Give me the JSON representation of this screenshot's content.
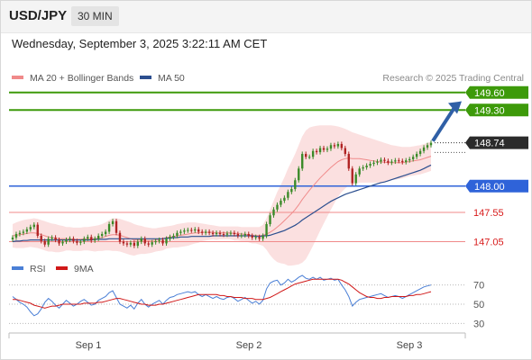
{
  "header": {
    "symbol": "USD/JPY",
    "timeframe": "30 MIN",
    "datetime": "Wednesday, September 3, 2025 3:22:11 AM CET"
  },
  "legend": {
    "items": [
      {
        "label": "MA 20 + Bollinger Bands",
        "color": "#f08a8a"
      },
      {
        "label": "MA 50",
        "color": "#2c4f8f"
      }
    ],
    "credit": "Research © 2025 Trading Central"
  },
  "colors": {
    "resistance": "#3d9a0a",
    "support": "#2f63d9",
    "pivot_line": "#f08a8a",
    "pivot_text": "#d81b1b",
    "last_price_bg": "#2b2b2b",
    "candle_up": "#3a8a28",
    "candle_down": "#b02424",
    "bollinger_fill": "#fbe0e0",
    "rsi": "#4a7fd6",
    "rsi_ma": "#d01818",
    "arrow": "#2f5fa6"
  },
  "chart_data": [
    {
      "type": "candlestick",
      "ylim": [
        146.95,
        149.72
      ],
      "x_labels": [
        "Sep 1",
        "Sep 2",
        "Sep 3"
      ],
      "levels": [
        {
          "value": 149.6,
          "label": "149.60",
          "kind": "resistance"
        },
        {
          "value": 149.3,
          "label": "149.30",
          "kind": "resistance"
        },
        {
          "value": 148.0,
          "label": "148.00",
          "kind": "support"
        },
        {
          "value": 147.55,
          "label": "147.55",
          "kind": "pivot"
        },
        {
          "value": 147.05,
          "label": "147.05",
          "kind": "pivot"
        }
      ],
      "last_price": {
        "value": 148.74,
        "label": "148.74"
      },
      "forecast_arrow": {
        "from": 148.74,
        "to": 149.45
      },
      "closes": [
        147.12,
        147.18,
        147.2,
        147.22,
        147.26,
        147.3,
        147.34,
        147.15,
        147.06,
        147.0,
        147.1,
        147.12,
        147.08,
        147.02,
        147.05,
        147.08,
        147.1,
        147.06,
        147.03,
        147.05,
        147.1,
        147.13,
        147.07,
        147.1,
        147.15,
        147.18,
        147.22,
        147.35,
        147.4,
        147.2,
        147.05,
        147.02,
        147.0,
        147.03,
        146.98,
        147.05,
        147.1,
        147.02,
        147.0,
        147.04,
        147.06,
        147.08,
        147.02,
        147.1,
        147.13,
        147.15,
        147.2,
        147.22,
        147.24,
        147.25,
        147.24,
        147.26,
        147.22,
        147.2,
        147.22,
        147.2,
        147.18,
        147.2,
        147.18,
        147.17,
        147.19,
        147.2,
        147.18,
        147.15,
        147.16,
        147.18,
        147.15,
        147.12,
        147.13,
        147.1,
        147.15,
        147.35,
        147.5,
        147.6,
        147.68,
        147.75,
        147.8,
        147.9,
        147.95,
        148.1,
        148.3,
        148.55,
        148.5,
        148.5,
        148.6,
        148.58,
        148.65,
        148.62,
        148.64,
        148.7,
        148.68,
        148.72,
        148.65,
        148.55,
        148.3,
        148.05,
        148.2,
        148.3,
        148.32,
        148.35,
        148.38,
        148.4,
        148.42,
        148.45,
        148.43,
        148.4,
        148.42,
        148.44,
        148.43,
        148.41,
        148.44,
        148.46,
        148.5,
        148.55,
        148.6,
        148.66,
        148.7,
        148.74
      ],
      "ma20": [
        147.15,
        147.16,
        147.17,
        147.18,
        147.19,
        147.2,
        147.2,
        147.19,
        147.17,
        147.15,
        147.13,
        147.12,
        147.11,
        147.1,
        147.1,
        147.1,
        147.1,
        147.09,
        147.09,
        147.09,
        147.1,
        147.1,
        147.1,
        147.1,
        147.11,
        147.12,
        147.14,
        147.16,
        147.17,
        147.17,
        147.16,
        147.14,
        147.12,
        147.1,
        147.08,
        147.08,
        147.08,
        147.07,
        147.07,
        147.07,
        147.08,
        147.09,
        147.1,
        147.12,
        147.13,
        147.14,
        147.15,
        147.16,
        147.17,
        147.18,
        147.19,
        147.2,
        147.2,
        147.21,
        147.21,
        147.21,
        147.21,
        147.2,
        147.2,
        147.2,
        147.2,
        147.2,
        147.19,
        147.19,
        147.18,
        147.18,
        147.17,
        147.16,
        147.16,
        147.15,
        147.16,
        147.18,
        147.21,
        147.25,
        147.3,
        147.35,
        147.41,
        147.47,
        147.53,
        147.6,
        147.68,
        147.77,
        147.85,
        147.93,
        148.0,
        148.07,
        148.14,
        148.2,
        148.26,
        148.32,
        148.37,
        148.42,
        148.45,
        148.47,
        148.48,
        148.47,
        148.47,
        148.47,
        148.46,
        148.45,
        148.44,
        148.43,
        148.42,
        148.41,
        148.41,
        148.4,
        148.4,
        148.4,
        148.4,
        148.4,
        148.41,
        148.42,
        148.43,
        148.44,
        148.45,
        148.47,
        148.49,
        148.51
      ],
      "bb_upper": [
        147.35,
        147.38,
        147.4,
        147.42,
        147.43,
        147.44,
        147.45,
        147.44,
        147.42,
        147.4,
        147.38,
        147.36,
        147.35,
        147.33,
        147.32,
        147.3,
        147.3,
        147.29,
        147.29,
        147.29,
        147.3,
        147.3,
        147.31,
        147.32,
        147.33,
        147.35,
        147.38,
        147.42,
        147.45,
        147.45,
        147.44,
        147.42,
        147.4,
        147.38,
        147.35,
        147.33,
        147.32,
        147.3,
        147.29,
        147.28,
        147.28,
        147.29,
        147.3,
        147.31,
        147.32,
        147.33,
        147.35,
        147.36,
        147.37,
        147.38,
        147.38,
        147.38,
        147.37,
        147.36,
        147.35,
        147.34,
        147.33,
        147.32,
        147.31,
        147.31,
        147.31,
        147.31,
        147.31,
        147.31,
        147.3,
        147.3,
        147.3,
        147.3,
        147.3,
        147.3,
        147.34,
        147.45,
        147.6,
        147.75,
        147.9,
        148.02,
        148.15,
        148.3,
        148.42,
        148.55,
        148.7,
        148.85,
        148.95,
        149.0,
        149.02,
        149.03,
        149.04,
        149.04,
        149.04,
        149.04,
        149.03,
        149.02,
        149.0,
        148.98,
        148.95,
        148.92,
        148.9,
        148.88,
        148.86,
        148.84,
        148.82,
        148.8,
        148.78,
        148.76,
        148.74,
        148.72,
        148.7,
        148.69,
        148.68,
        148.67,
        148.67,
        148.67,
        148.68,
        148.69,
        148.7,
        148.72,
        148.74,
        148.76
      ],
      "bb_lower": [
        146.95,
        146.94,
        146.94,
        146.94,
        146.95,
        146.96,
        146.95,
        146.94,
        146.92,
        146.9,
        146.88,
        146.88,
        146.87,
        146.87,
        146.88,
        146.9,
        146.9,
        146.89,
        146.89,
        146.89,
        146.9,
        146.9,
        146.89,
        146.88,
        146.89,
        146.89,
        146.9,
        146.9,
        146.89,
        146.89,
        146.88,
        146.86,
        146.84,
        146.82,
        146.81,
        146.83,
        146.84,
        146.84,
        146.85,
        146.86,
        146.88,
        146.89,
        146.9,
        146.93,
        146.94,
        146.95,
        146.95,
        146.96,
        146.97,
        146.98,
        147.0,
        147.02,
        147.03,
        147.06,
        147.07,
        147.08,
        147.09,
        147.08,
        147.09,
        147.09,
        147.09,
        147.09,
        147.07,
        147.07,
        147.06,
        147.06,
        147.04,
        147.02,
        147.02,
        147.0,
        146.98,
        146.91,
        146.82,
        146.75,
        146.7,
        146.68,
        146.67,
        146.64,
        146.64,
        146.65,
        146.66,
        146.69,
        146.75,
        146.86,
        146.98,
        147.11,
        147.24,
        147.36,
        147.48,
        147.6,
        147.71,
        147.82,
        147.9,
        147.96,
        148.01,
        148.02,
        148.04,
        148.06,
        148.06,
        148.06,
        148.06,
        148.06,
        148.06,
        148.06,
        148.08,
        148.08,
        148.1,
        148.11,
        148.12,
        148.13,
        148.15,
        148.17,
        148.18,
        148.19,
        148.2,
        148.22,
        148.24,
        148.26
      ],
      "ma50": [
        147.05,
        147.06,
        147.06,
        147.07,
        147.07,
        147.08,
        147.08,
        147.08,
        147.08,
        147.08,
        147.08,
        147.08,
        147.08,
        147.08,
        147.08,
        147.08,
        147.08,
        147.08,
        147.08,
        147.08,
        147.08,
        147.08,
        147.08,
        147.09,
        147.09,
        147.09,
        147.09,
        147.1,
        147.1,
        147.1,
        147.1,
        147.1,
        147.1,
        147.1,
        147.1,
        147.1,
        147.1,
        147.1,
        147.1,
        147.1,
        147.1,
        147.1,
        147.1,
        147.11,
        147.11,
        147.12,
        147.12,
        147.13,
        147.13,
        147.13,
        147.14,
        147.14,
        147.14,
        147.14,
        147.14,
        147.14,
        147.15,
        147.15,
        147.15,
        147.15,
        147.15,
        147.15,
        147.15,
        147.15,
        147.15,
        147.15,
        147.15,
        147.15,
        147.14,
        147.14,
        147.15,
        147.15,
        147.16,
        147.18,
        147.2,
        147.22,
        147.24,
        147.27,
        147.3,
        147.33,
        147.37,
        147.42,
        147.46,
        147.5,
        147.54,
        147.58,
        147.62,
        147.66,
        147.7,
        147.74,
        147.77,
        147.8,
        147.83,
        147.86,
        147.88,
        147.9,
        147.92,
        147.94,
        147.96,
        147.98,
        148.0,
        148.02,
        148.04,
        148.06,
        148.07,
        148.09,
        148.11,
        148.13,
        148.15,
        148.17,
        148.19,
        148.21,
        148.23,
        148.25,
        148.27,
        148.3,
        148.33,
        148.36
      ]
    },
    {
      "type": "line",
      "legend": [
        "RSI",
        "9MA"
      ],
      "ylim": [
        20,
        80
      ],
      "y_ticks": [
        70,
        50,
        30
      ],
      "rsi": [
        58,
        55,
        52,
        50,
        47,
        42,
        38,
        40,
        45,
        52,
        56,
        53,
        49,
        46,
        50,
        54,
        51,
        48,
        50,
        53,
        55,
        52,
        49,
        50,
        54,
        56,
        58,
        62,
        64,
        57,
        50,
        48,
        46,
        49,
        45,
        51,
        55,
        50,
        47,
        50,
        52,
        54,
        50,
        54,
        57,
        58,
        60,
        61,
        62,
        63,
        62,
        63,
        60,
        58,
        60,
        58,
        56,
        58,
        56,
        55,
        57,
        58,
        56,
        53,
        55,
        57,
        54,
        51,
        53,
        50,
        54,
        66,
        72,
        74,
        75,
        70,
        72,
        76,
        73,
        75,
        78,
        80,
        77,
        76,
        78,
        76,
        78,
        75,
        76,
        77,
        75,
        76,
        70,
        65,
        58,
        48,
        52,
        55,
        56,
        57,
        58,
        59,
        60,
        61,
        59,
        57,
        58,
        59,
        58,
        56,
        58,
        60,
        62,
        64,
        66,
        68,
        69,
        70
      ],
      "ma9": [
        55,
        55,
        54,
        53,
        52,
        51,
        49,
        48,
        47,
        46,
        47,
        48,
        48,
        49,
        50,
        50,
        50,
        50,
        50,
        50,
        51,
        51,
        51,
        51,
        52,
        52,
        53,
        54,
        55,
        56,
        56,
        55,
        54,
        53,
        52,
        51,
        50,
        50,
        49,
        49,
        49,
        50,
        50,
        51,
        52,
        53,
        54,
        55,
        56,
        57,
        58,
        59,
        60,
        60,
        60,
        60,
        60,
        60,
        59,
        59,
        58,
        58,
        57,
        57,
        57,
        56,
        56,
        56,
        55,
        55,
        55,
        56,
        57,
        59,
        61,
        63,
        65,
        67,
        69,
        71,
        72,
        73,
        74,
        75,
        76,
        76,
        76,
        76,
        76,
        76,
        76,
        76,
        75,
        73,
        71,
        68,
        65,
        62,
        60,
        58,
        57,
        57,
        56,
        56,
        57,
        57,
        58,
        58,
        58,
        58,
        58,
        59,
        59,
        60,
        60,
        61,
        62,
        63
      ]
    }
  ]
}
